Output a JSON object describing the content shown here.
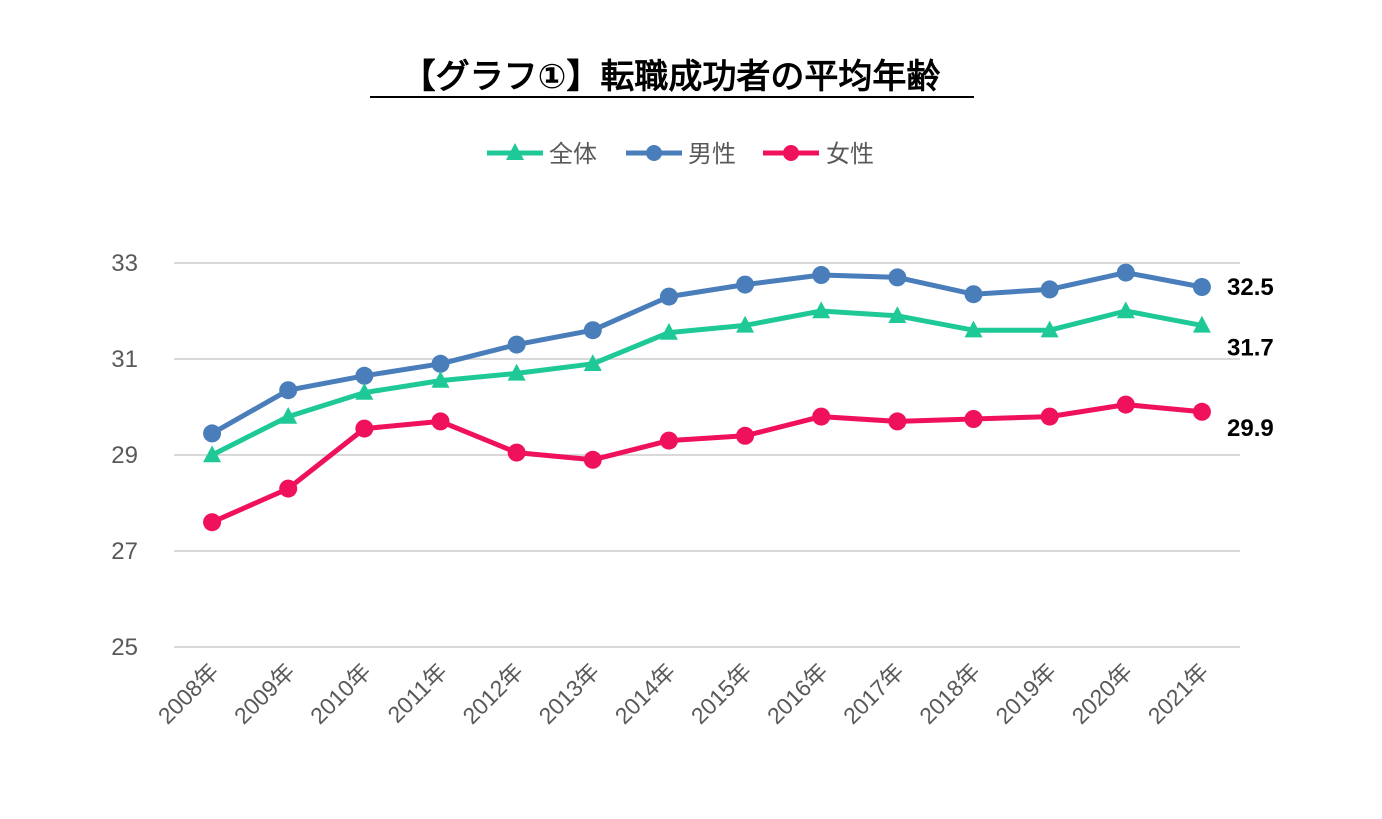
{
  "chart_data": {
    "type": "line",
    "title": "【グラフ①】転職成功者の平均年齢",
    "xlabel": "",
    "ylabel": "",
    "ylim": [
      25,
      33
    ],
    "yticks": [
      25,
      27,
      29,
      31,
      33
    ],
    "grid": true,
    "legend_position": "top",
    "categories": [
      "2008年",
      "2009年",
      "2010年",
      "2011年",
      "2012年",
      "2013年",
      "2014年",
      "2015年",
      "2016年",
      "2017年",
      "2018年",
      "2019年",
      "2020年",
      "2021年"
    ],
    "series": [
      {
        "name": "全体",
        "color": "#1fc997",
        "marker": "triangle",
        "values": [
          29.0,
          29.8,
          30.3,
          30.55,
          30.7,
          30.9,
          31.55,
          31.7,
          32.0,
          31.9,
          31.6,
          31.6,
          32.0,
          31.7
        ],
        "end_label": "31.7"
      },
      {
        "name": "男性",
        "color": "#4a7ebb",
        "marker": "circle",
        "values": [
          29.45,
          30.35,
          30.65,
          30.9,
          31.3,
          31.6,
          32.3,
          32.55,
          32.75,
          32.7,
          32.35,
          32.45,
          32.8,
          32.5
        ],
        "end_label": "32.5"
      },
      {
        "name": "女性",
        "color": "#f0115d",
        "marker": "circle",
        "values": [
          27.6,
          28.3,
          29.55,
          29.7,
          29.05,
          28.9,
          29.3,
          29.4,
          29.8,
          29.7,
          29.75,
          29.8,
          30.05,
          29.9
        ],
        "end_label": "29.9"
      }
    ]
  }
}
